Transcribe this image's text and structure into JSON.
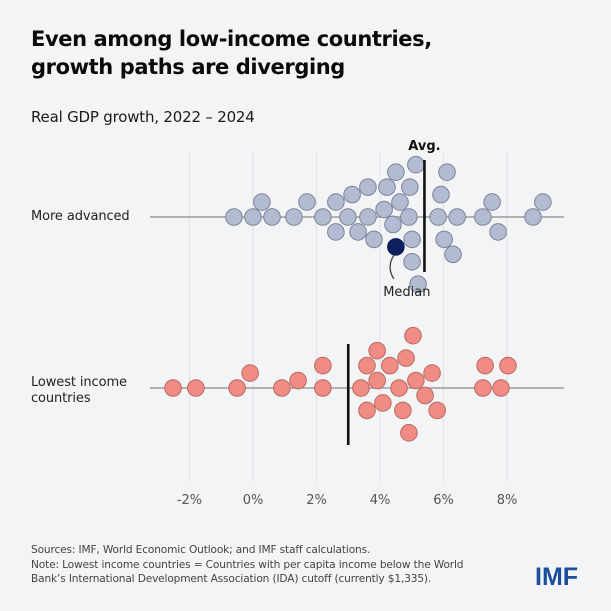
{
  "header": {
    "title_lines": [
      "Even among low-income countries,",
      "growth paths are diverging"
    ],
    "subtitle": "Real GDP growth, 2022 – 2024"
  },
  "chart_data": {
    "type": "scatter",
    "subtype": "beeswarm",
    "title": "Even among low-income countries, growth paths are diverging",
    "subtitle": "Real GDP growth, 2022 – 2024",
    "xlabel": "",
    "ylabel": "",
    "xlim": [
      -3.3,
      9.8
    ],
    "x_ticks": [
      -2,
      0,
      2,
      4,
      6,
      8
    ],
    "x_tick_labels": [
      "-2%",
      "0%",
      "2%",
      "4%",
      "6%",
      "8%"
    ],
    "grid": "vertical",
    "series": [
      {
        "name": "More advanced",
        "label_lines": [
          "More advanced"
        ],
        "color": "#b3bbd2",
        "stroke": "#7d8499",
        "average": 5.4,
        "average_label": "Avg.",
        "highlight": {
          "value": 4.5,
          "color": "#0d1f5c",
          "label": "Median"
        },
        "values": [
          -0.6,
          0.0,
          0.28,
          0.6,
          1.29,
          1.7,
          2.2,
          2.61,
          2.61,
          2.99,
          3.12,
          3.31,
          3.62,
          3.62,
          3.81,
          4.13,
          4.22,
          4.41,
          4.5,
          4.5,
          4.63,
          4.91,
          4.94,
          5.01,
          5.01,
          5.13,
          5.2,
          5.83,
          5.92,
          6.02,
          6.11,
          6.3,
          6.43,
          7.24,
          7.53,
          7.72,
          8.82,
          9.13
        ]
      },
      {
        "name": "Lowest income countries",
        "label_lines": [
          "Lowest income",
          "countries"
        ],
        "color": "#f08c84",
        "stroke": "#b86a64",
        "average": 3.0,
        "highlight": {
          "value": 4.03,
          "color": "#d8261e",
          "label": ""
        },
        "values": [
          -2.52,
          -1.8,
          -0.5,
          -0.09,
          0.91,
          1.42,
          2.2,
          2.2,
          3.4,
          3.59,
          3.59,
          3.91,
          3.91,
          4.09,
          4.31,
          4.6,
          4.72,
          4.82,
          4.91,
          5.04,
          5.13,
          5.42,
          5.64,
          5.8,
          7.24,
          7.31,
          7.81,
          8.03
        ]
      }
    ]
  },
  "footer": {
    "sources_lines": [
      "Sources: IMF, World Economic Outlook; and IMF staff calculations.",
      "Note: Lowest income countries = Countries with per capita income below the World",
      "Bank’s International Development Association (IDA) cutoff (currently $1,335)."
    ],
    "logo": "IMF"
  }
}
